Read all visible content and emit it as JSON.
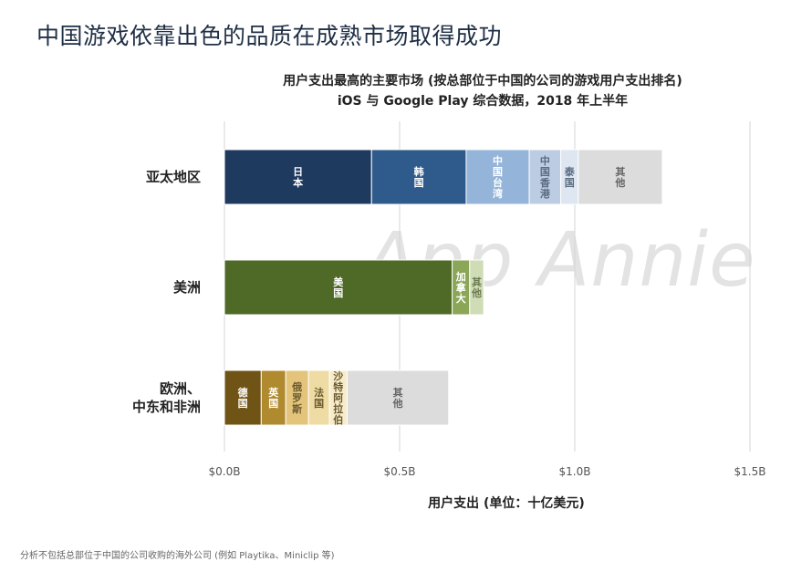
{
  "page": {
    "title": "中国游戏依靠出色的品质在成熟市场取得成功",
    "footnote": "分析不包括总部位于中国的公司收购的海外公司 (例如 Playtika、Miniclip 等)",
    "watermark": "App Annie"
  },
  "chart_data": {
    "type": "bar",
    "orientation": "horizontal",
    "stacked": true,
    "title": "用户支出最高的主要市场 (按总部位于中国的公司的游戏用户支出排名)",
    "subtitle": "iOS 与 Google Play 综合数据，2018 年上半年",
    "xlabel": "用户支出 (单位：十亿美元)",
    "xlim": [
      0,
      1.5
    ],
    "xticks": [
      0,
      0.5,
      1.0,
      1.5
    ],
    "xtick_labels": [
      "$0.0B",
      "$0.5B",
      "$1.0B",
      "$1.5B"
    ],
    "grid": "vertical",
    "categories": [
      {
        "name": "亚太地区",
        "segments": [
          {
            "label": "日本",
            "value": 0.42,
            "color": "#1f3a5f",
            "text_color": "#ffffff"
          },
          {
            "label": "韩国",
            "value": 0.27,
            "color": "#2f5a8c",
            "text_color": "#ffffff"
          },
          {
            "label": "中国台湾",
            "value": 0.18,
            "color": "#94b4d9",
            "text_color": "#ffffff"
          },
          {
            "label": "中国香港",
            "value": 0.09,
            "color": "#bccde3",
            "text_color": "#5a6b80"
          },
          {
            "label": "泰国",
            "value": 0.05,
            "color": "#dde6f1",
            "text_color": "#5a6b80"
          },
          {
            "label": "其他",
            "value": 0.24,
            "color": "#dcdcdc",
            "text_color": "#666666"
          }
        ]
      },
      {
        "name": "美洲",
        "segments": [
          {
            "label": "美国",
            "value": 0.65,
            "color": "#4e6a26",
            "text_color": "#ffffff"
          },
          {
            "label": "加拿大",
            "value": 0.05,
            "color": "#8aa656",
            "text_color": "#ffffff"
          },
          {
            "label": "其他",
            "value": 0.04,
            "color": "#cfdcb6",
            "text_color": "#6b7a50"
          }
        ]
      },
      {
        "name": "欧洲、中东和非洲",
        "segments": [
          {
            "label": "德国",
            "value": 0.105,
            "color": "#6f5415",
            "text_color": "#ffffff"
          },
          {
            "label": "英国",
            "value": 0.07,
            "color": "#b08a2e",
            "text_color": "#ffffff"
          },
          {
            "label": "俄罗斯",
            "value": 0.065,
            "color": "#e3c47a",
            "text_color": "#6b5a30"
          },
          {
            "label": "法国",
            "value": 0.06,
            "color": "#efdca5",
            "text_color": "#6b5a30"
          },
          {
            "label": "沙特阿拉伯",
            "value": 0.05,
            "color": "#f6ecc9",
            "text_color": "#6b5a30"
          },
          {
            "label": "其他",
            "value": 0.29,
            "color": "#dcdcdc",
            "text_color": "#666666"
          }
        ]
      }
    ]
  }
}
